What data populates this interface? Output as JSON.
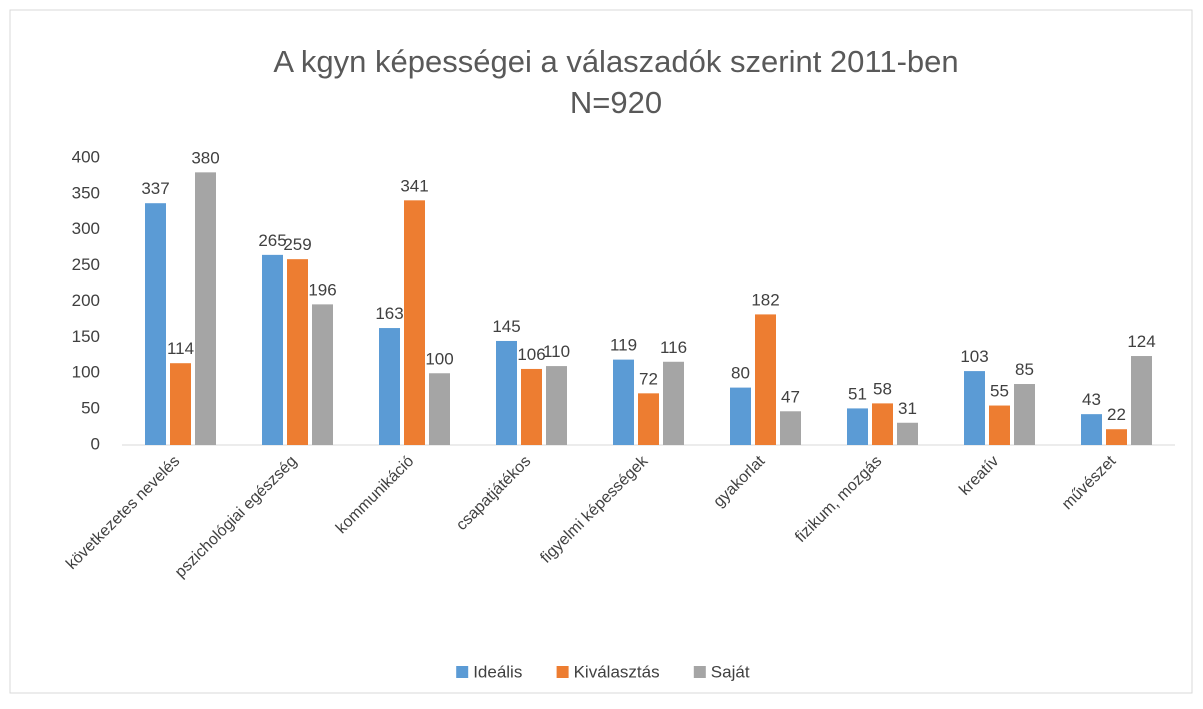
{
  "chart_data": {
    "type": "bar",
    "title": "A kgyn képességei a válaszadók szerint 2011-ben",
    "subtitle": "N=920",
    "categories": [
      "következetes nevelés",
      "pszichológiai egészség",
      "kommunikáció",
      "csapatjátékos",
      "figyelmi képességek",
      "gyakorlat",
      "fizikum, mozgás",
      "kreatív",
      "művészet"
    ],
    "series": [
      {
        "name": "Ideális",
        "color": "#5b9bd5",
        "values": [
          337,
          265,
          163,
          145,
          119,
          80,
          51,
          103,
          43
        ]
      },
      {
        "name": "Kiválasztás",
        "color": "#ed7d31",
        "values": [
          114,
          259,
          341,
          106,
          72,
          182,
          58,
          55,
          22
        ]
      },
      {
        "name": "Saját",
        "color": "#a5a5a5",
        "values": [
          380,
          196,
          100,
          110,
          116,
          47,
          31,
          85,
          124
        ]
      }
    ],
    "ylim": [
      0,
      400
    ],
    "yticks": [
      0,
      50,
      100,
      150,
      200,
      250,
      300,
      350,
      400
    ],
    "grid": false,
    "legend": "bottom"
  }
}
